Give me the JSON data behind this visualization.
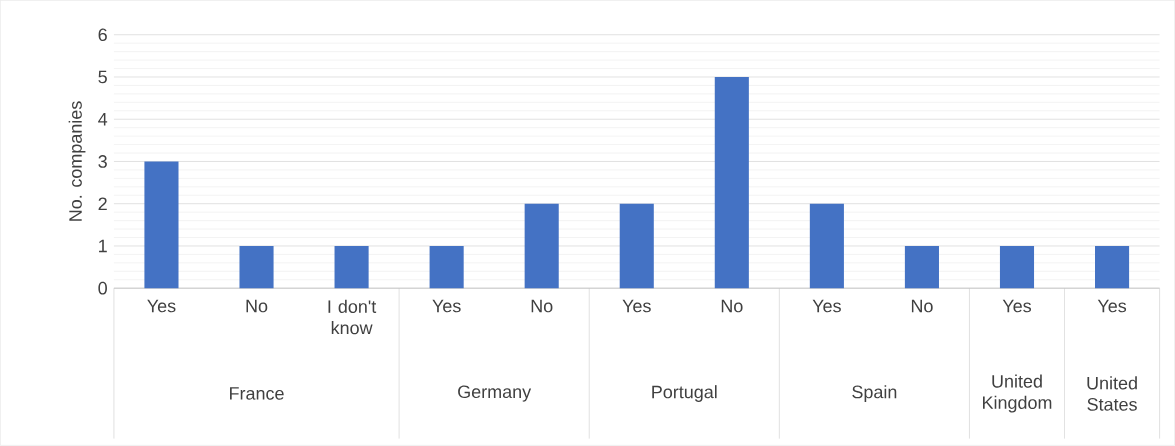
{
  "chart_data": {
    "type": "bar",
    "ylabel": "No. companies",
    "categories": [
      "Yes",
      "No",
      "I don't know",
      "Yes",
      "No",
      "Yes",
      "No",
      "Yes",
      "No",
      "Yes",
      "Yes"
    ],
    "values": [
      3,
      1,
      1,
      1,
      2,
      2,
      5,
      2,
      1,
      1,
      1
    ],
    "color": "#4472c4",
    "ylim": [
      0,
      6
    ],
    "yticks": [
      0,
      1,
      2,
      3,
      4,
      5,
      6
    ],
    "grid": "y",
    "annotations": [
      "France",
      "Germany",
      "Portugal",
      "Spain",
      "United Kingdom",
      "United States"
    ]
  }
}
